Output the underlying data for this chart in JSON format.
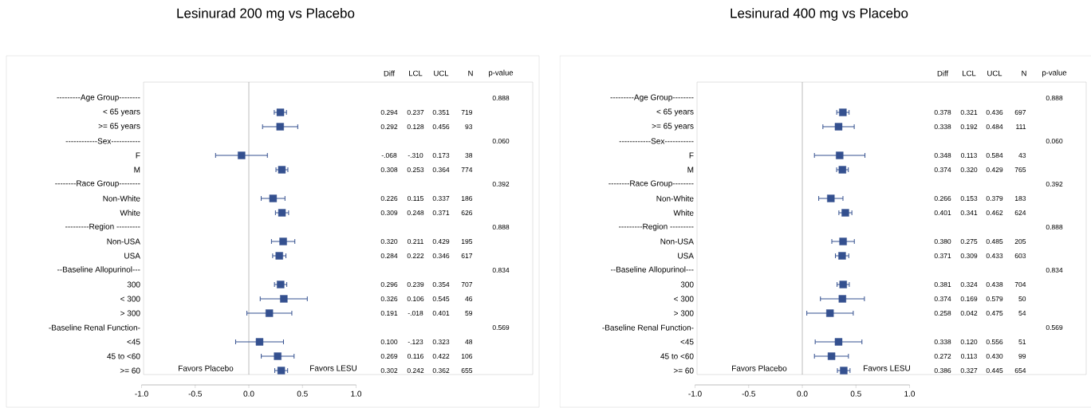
{
  "chart_data": [
    {
      "type": "scatter",
      "title": "Lesinurad 200 mg vs Placebo",
      "orientation": "horizontal",
      "marker": "square",
      "color": "#34508f",
      "categories": [
        "---------Age Group--------",
        "< 65 years",
        ">= 65 years",
        "------------Sex-----------",
        "F",
        "M",
        "--------Race Group--------",
        "Non-White",
        "White",
        "---------Region ---------",
        "Non-USA",
        "USA",
        "--Baseline Allopurinol---",
        "300",
        "< 300",
        "> 300",
        "-Baseline Renal Function-",
        "<45",
        "45 to <60",
        ">= 60"
      ],
      "values": [
        null,
        0.294,
        0.292,
        null,
        -0.068,
        0.308,
        null,
        0.226,
        0.309,
        null,
        0.32,
        0.284,
        null,
        0.296,
        0.326,
        0.191,
        null,
        0.1,
        0.269,
        0.302
      ],
      "value_labels": [
        null,
        "0.294",
        "0.292",
        null,
        "-.068",
        "0.308",
        null,
        "0.226",
        "0.309",
        null,
        "0.320",
        "0.284",
        null,
        "0.296",
        "0.326",
        "0.191",
        null,
        "0.100",
        "0.269",
        "0.302"
      ],
      "errors": [
        null,
        [
          0.237,
          0.351
        ],
        [
          0.128,
          0.456
        ],
        null,
        [
          -0.31,
          0.173
        ],
        [
          0.253,
          0.364
        ],
        null,
        [
          0.115,
          0.337
        ],
        [
          0.248,
          0.371
        ],
        null,
        [
          0.211,
          0.429
        ],
        [
          0.222,
          0.346
        ],
        null,
        [
          0.239,
          0.354
        ],
        [
          0.106,
          0.545
        ],
        [
          -0.018,
          0.401
        ],
        null,
        [
          -0.123,
          0.323
        ],
        [
          0.116,
          0.422
        ],
        [
          0.242,
          0.362
        ]
      ],
      "xlim": [
        -1,
        1
      ],
      "xticks": [
        {
          "value": -1,
          "label": "-1.0"
        },
        {
          "value": -0.5,
          "label": "-0.5"
        },
        {
          "value": 0,
          "label": "0.0"
        },
        {
          "value": 0.5,
          "label": "0.5"
        },
        {
          "value": 1,
          "label": "1.0"
        }
      ],
      "ref_lines": [
        {
          "axis": "x",
          "value": 0
        }
      ],
      "annotations": [
        "Diff",
        "LCL",
        "UCL",
        "N",
        "p-value",
        "Favors Placebo",
        "Favors LESU",
        "0.888",
        "0.237",
        "0.351",
        "719",
        "0.128",
        "0.456",
        "93",
        "0.060",
        "-.310",
        "0.173",
        "38",
        "0.253",
        "0.364",
        "774",
        "0.392",
        "0.115",
        "0.337",
        "186",
        "0.248",
        "0.371",
        "626",
        "0.888",
        "0.211",
        "0.429",
        "195",
        "0.222",
        "0.346",
        "617",
        "0.834",
        "0.239",
        "0.354",
        "707",
        "0.106",
        "0.545",
        "46",
        "-.018",
        "0.401",
        "59",
        "0.569",
        "-.123",
        "0.323",
        "48",
        "0.116",
        "0.422",
        "106",
        "0.242",
        "0.362",
        "655"
      ]
    },
    {
      "type": "scatter",
      "title": "Lesinurad 400 mg vs Placebo",
      "orientation": "horizontal",
      "marker": "square",
      "color": "#34508f",
      "categories": [
        "---------Age Group--------",
        "< 65 years",
        ">= 65 years",
        "------------Sex-----------",
        "F",
        "M",
        "--------Race Group--------",
        "Non-White",
        "White",
        "---------Region ---------",
        "Non-USA",
        "USA",
        "--Baseline Allopurinol---",
        "300",
        "< 300",
        "> 300",
        "-Baseline Renal Function-",
        "<45",
        "45 to <60",
        ">= 60"
      ],
      "values": [
        null,
        0.378,
        0.338,
        null,
        0.348,
        0.374,
        null,
        0.266,
        0.401,
        null,
        0.38,
        0.371,
        null,
        0.381,
        0.374,
        0.258,
        null,
        0.338,
        0.272,
        0.386
      ],
      "value_labels": [
        null,
        "0.378",
        "0.338",
        null,
        "0.348",
        "0.374",
        null,
        "0.266",
        "0.401",
        null,
        "0.380",
        "0.371",
        null,
        "0.381",
        "0.374",
        "0.258",
        null,
        "0.338",
        "0.272",
        "0.386"
      ],
      "errors": [
        null,
        [
          0.321,
          0.436
        ],
        [
          0.192,
          0.484
        ],
        null,
        [
          0.113,
          0.584
        ],
        [
          0.32,
          0.429
        ],
        null,
        [
          0.153,
          0.379
        ],
        [
          0.341,
          0.462
        ],
        null,
        [
          0.275,
          0.485
        ],
        [
          0.309,
          0.433
        ],
        null,
        [
          0.324,
          0.438
        ],
        [
          0.169,
          0.579
        ],
        [
          0.042,
          0.475
        ],
        null,
        [
          0.12,
          0.556
        ],
        [
          0.113,
          0.43
        ],
        [
          0.327,
          0.445
        ]
      ],
      "xlim": [
        -1,
        1
      ],
      "xticks": [
        {
          "value": -1,
          "label": "-1.0"
        },
        {
          "value": -0.5,
          "label": "-0.5"
        },
        {
          "value": 0,
          "label": "0.0"
        },
        {
          "value": 0.5,
          "label": "0.5"
        },
        {
          "value": 1,
          "label": "1.0"
        }
      ],
      "ref_lines": [
        {
          "axis": "x",
          "value": 0
        }
      ],
      "annotations": [
        "Diff",
        "LCL",
        "UCL",
        "N",
        "p-value",
        "Favors Placebo",
        "Favors LESU",
        "0.888",
        "0.321",
        "0.436",
        "697",
        "0.192",
        "0.484",
        "111",
        "0.060",
        "0.113",
        "0.584",
        "43",
        "0.320",
        "0.429",
        "765",
        "0.392",
        "0.153",
        "0.379",
        "183",
        "0.341",
        "0.462",
        "624",
        "0.888",
        "0.275",
        "0.485",
        "205",
        "0.309",
        "0.433",
        "603",
        "0.834",
        "0.324",
        "0.438",
        "704",
        "0.169",
        "0.579",
        "50",
        "0.042",
        "0.475",
        "54",
        "0.569",
        "0.120",
        "0.556",
        "51",
        "0.113",
        "0.430",
        "99",
        "0.327",
        "0.445",
        "654"
      ]
    }
  ]
}
